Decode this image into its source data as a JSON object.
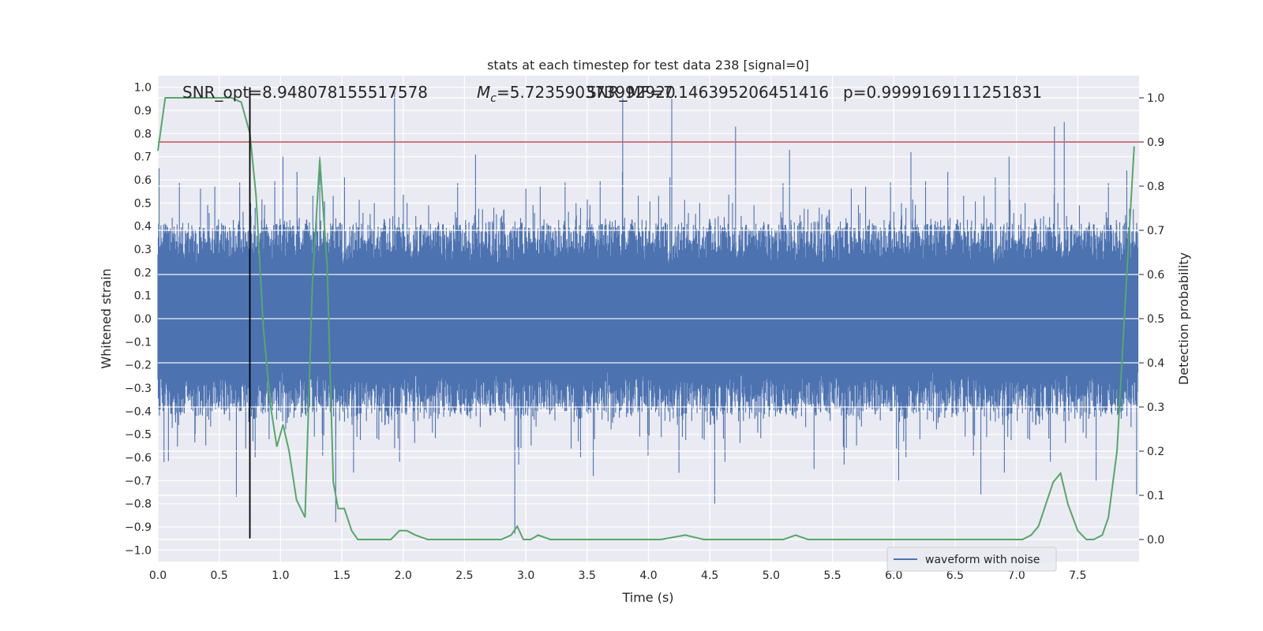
{
  "chart_data": {
    "type": "line",
    "title": "stats at each timestep for test data 238 [signal=0]",
    "xlabel": "Time (s)",
    "ylabel": "Whitened strain",
    "ylabel_right": "Detection probability",
    "xlim": [
      0.0,
      8.0
    ],
    "ylim": [
      -1.05,
      1.05
    ],
    "ylim_right": [
      -0.05,
      1.05
    ],
    "grid": true,
    "legend_placement": "lower-right",
    "xticks": [
      "0.0",
      "0.5",
      "1.0",
      "1.5",
      "2.0",
      "2.5",
      "3.0",
      "3.5",
      "4.0",
      "4.5",
      "5.0",
      "5.5",
      "6.0",
      "6.5",
      "7.0",
      "7.5"
    ],
    "yticks": [
      "1.0",
      "0.9",
      "0.8",
      "0.7",
      "0.6",
      "0.5",
      "0.4",
      "0.3",
      "0.2",
      "0.1",
      "0.0",
      "−0.1",
      "−0.2",
      "−0.3",
      "−0.4",
      "−0.5",
      "−0.6",
      "−0.7",
      "−0.8",
      "−0.9",
      "−1.0"
    ],
    "yticks_right": [
      "1.0",
      "0.9",
      "0.8",
      "0.7",
      "0.6",
      "0.5",
      "0.4",
      "0.3",
      "0.2",
      "0.1",
      "0.0"
    ],
    "annotations": {
      "snr_opt": "SNR_opt=8.948078155517578",
      "mc_prefix": "M",
      "mc_sub": "c",
      "mc_value": "=5.723590373992920",
      "snr_mf": "SNR_MF=7.146395206451416",
      "p_value": "p=0.9999169111251831"
    },
    "series": [
      {
        "name": "waveform with noise",
        "color": "#4c72b0",
        "description_kind": "dense whitened strain noise",
        "envelope": {
          "typical_max": 0.4,
          "typical_min": -0.4
        },
        "peaks": [
          {
            "x": 1.93,
            "y": 1.0
          },
          {
            "x": 3.79,
            "y": 0.96
          },
          {
            "x": 4.19,
            "y": 0.95
          },
          {
            "x": 4.71,
            "y": 0.83
          },
          {
            "x": 7.31,
            "y": 0.83
          },
          {
            "x": 7.39,
            "y": 0.85
          },
          {
            "x": 1.32,
            "y": 0.7
          },
          {
            "x": 2.59,
            "y": 0.71
          },
          {
            "x": 5.15,
            "y": 0.73
          },
          {
            "x": 6.14,
            "y": 0.72
          },
          {
            "x": 1.02,
            "y": 0.7
          },
          {
            "x": 6.94,
            "y": 0.7
          },
          {
            "x": 0.01,
            "y": 0.65
          },
          {
            "x": 7.9,
            "y": 0.64
          }
        ],
        "troughs": [
          {
            "x": 2.91,
            "y": -0.93
          },
          {
            "x": 1.45,
            "y": -0.88
          },
          {
            "x": 0.64,
            "y": -0.77
          },
          {
            "x": 4.54,
            "y": -0.8
          },
          {
            "x": 6.71,
            "y": -0.76
          },
          {
            "x": 6.04,
            "y": -0.7
          },
          {
            "x": 0.05,
            "y": -0.62
          },
          {
            "x": 1.93,
            "y": -0.56
          },
          {
            "x": 7.98,
            "y": -0.76
          },
          {
            "x": 7.65,
            "y": -0.7
          },
          {
            "x": 3.55,
            "y": -0.68
          },
          {
            "x": 5.35,
            "y": -0.65
          }
        ]
      },
      {
        "name": "",
        "color": "#55a868",
        "axis": "right",
        "x": [
          0.0,
          0.06,
          0.12,
          0.2,
          0.3,
          0.4,
          0.5,
          0.6,
          0.68,
          0.75,
          0.8,
          0.86,
          0.92,
          0.97,
          1.02,
          1.07,
          1.13,
          1.2,
          1.26,
          1.32,
          1.38,
          1.43,
          1.47,
          1.52,
          1.58,
          1.63,
          1.7,
          1.8,
          1.9,
          1.97,
          2.03,
          2.1,
          2.2,
          2.3,
          2.5,
          2.7,
          2.8,
          2.88,
          2.93,
          2.98,
          3.04,
          3.1,
          3.2,
          3.3,
          3.5,
          3.7,
          3.9,
          4.1,
          4.3,
          4.45,
          4.6,
          4.8,
          5.0,
          5.1,
          5.2,
          5.3,
          5.5,
          5.7,
          5.9,
          6.1,
          6.3,
          6.5,
          6.7,
          6.9,
          7.05,
          7.12,
          7.18,
          7.24,
          7.3,
          7.36,
          7.42,
          7.5,
          7.57,
          7.63,
          7.7,
          7.75,
          7.82,
          7.9,
          7.96
        ],
        "values": [
          0.88,
          1.0,
          1.0,
          1.0,
          1.0,
          1.0,
          1.0,
          1.0,
          0.99,
          0.92,
          0.78,
          0.48,
          0.3,
          0.21,
          0.26,
          0.2,
          0.09,
          0.05,
          0.58,
          0.86,
          0.62,
          0.13,
          0.07,
          0.07,
          0.02,
          0.0,
          0.0,
          0.0,
          0.0,
          0.02,
          0.02,
          0.01,
          0.0,
          0.0,
          0.0,
          0.0,
          0.0,
          0.01,
          0.03,
          0.0,
          0.0,
          0.01,
          0.0,
          0.0,
          0.0,
          0.0,
          0.0,
          0.0,
          0.01,
          0.0,
          0.0,
          0.0,
          0.0,
          0.0,
          0.01,
          0.0,
          0.0,
          0.0,
          0.0,
          0.0,
          0.0,
          0.0,
          0.0,
          0.0,
          0.0,
          0.01,
          0.03,
          0.08,
          0.13,
          0.15,
          0.08,
          0.02,
          0.0,
          0.0,
          0.01,
          0.05,
          0.2,
          0.6,
          0.89
        ]
      }
    ],
    "threshold_right": 0.9,
    "threshold_color": "#c44e52",
    "vline_x": 0.75,
    "vline_ymin": -0.95,
    "vline_ymax": 1.0,
    "vline_color": "#000000",
    "legend": [
      "waveform with noise"
    ]
  }
}
